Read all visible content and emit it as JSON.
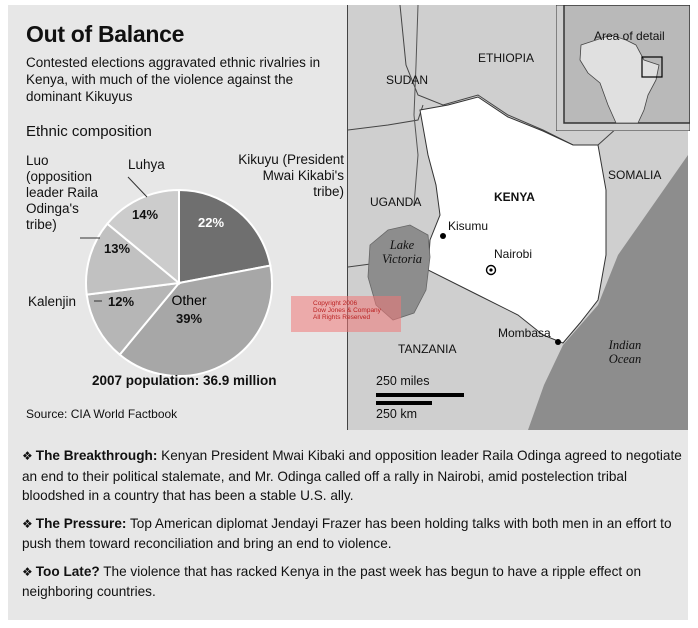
{
  "header": {
    "title": "Out of Balance",
    "subtitle": "Contested elections aggravated ethnic rivalries in Kenya, with much of the violence against the dominant Kikuyus"
  },
  "pie": {
    "heading": "Ethnic composition",
    "slices": [
      {
        "name": "Kikuyu",
        "label_lines": [
          "Kikuyu (President",
          "Mwai Kikabi's",
          "tribe)"
        ],
        "pct_text": "22%",
        "value": 22,
        "color": "#6f6f6f"
      },
      {
        "name": "Other",
        "label_lines": [],
        "center_label": "Other",
        "pct_text": "39%",
        "value": 39,
        "color": "#a7a7a7"
      },
      {
        "name": "Kalenjin",
        "label_lines": [
          "Kalenjin"
        ],
        "pct_text": "12%",
        "value": 12,
        "color": "#b6b6b6"
      },
      {
        "name": "Luo",
        "label_lines": [
          "Luo",
          "(opposition",
          "leader Raila",
          "Odinga's",
          "tribe)"
        ],
        "pct_text": "13%",
        "value": 13,
        "color": "#c1c1c1"
      },
      {
        "name": "Luhya",
        "label_lines": [
          "Luhya"
        ],
        "pct_text": "14%",
        "value": 14,
        "color": "#cccccc"
      }
    ],
    "population": "2007 population: 36.9 million",
    "source": "Source: CIA World Factbook"
  },
  "map": {
    "inset_label": "Area of detail",
    "countries": {
      "ethiopia": "ETHIOPIA",
      "sudan": "SUDAN",
      "somalia": "SOMALIA",
      "uganda": "UGANDA",
      "kenya": "KENYA",
      "tanzania": "TANZANIA"
    },
    "cities": {
      "kisumu": "Kisumu",
      "nairobi": "Nairobi",
      "mombasa": "Mombasa"
    },
    "water": {
      "lake": "Lake Victoria",
      "ocean": "Indian Ocean"
    },
    "scale": {
      "miles": "250 miles",
      "km": "250 km"
    }
  },
  "watermark": {
    "lines": [
      "Copyright 2006",
      "Dow Jones & Company",
      "All Rights Reserved"
    ]
  },
  "notes": [
    {
      "heading": "The Breakthrough:",
      "text": " Kenyan President Mwai Kibaki and opposition leader Raila Odinga agreed to negotiate an end to their political stalemate, and Mr. Odinga called off a rally in Nairobi, amid postelection tribal bloodshed in a country that has been a stable U.S. ally."
    },
    {
      "heading": "The Pressure:",
      "text": " Top American diplomat Jendayi Frazer has been holding talks with both men in an effort to push them toward reconciliation and bring an end to violence."
    },
    {
      "heading": "Too Late?",
      "text": " The violence that has racked Kenya in the past week has begun to have a ripple effect on neighboring countries."
    }
  ]
}
